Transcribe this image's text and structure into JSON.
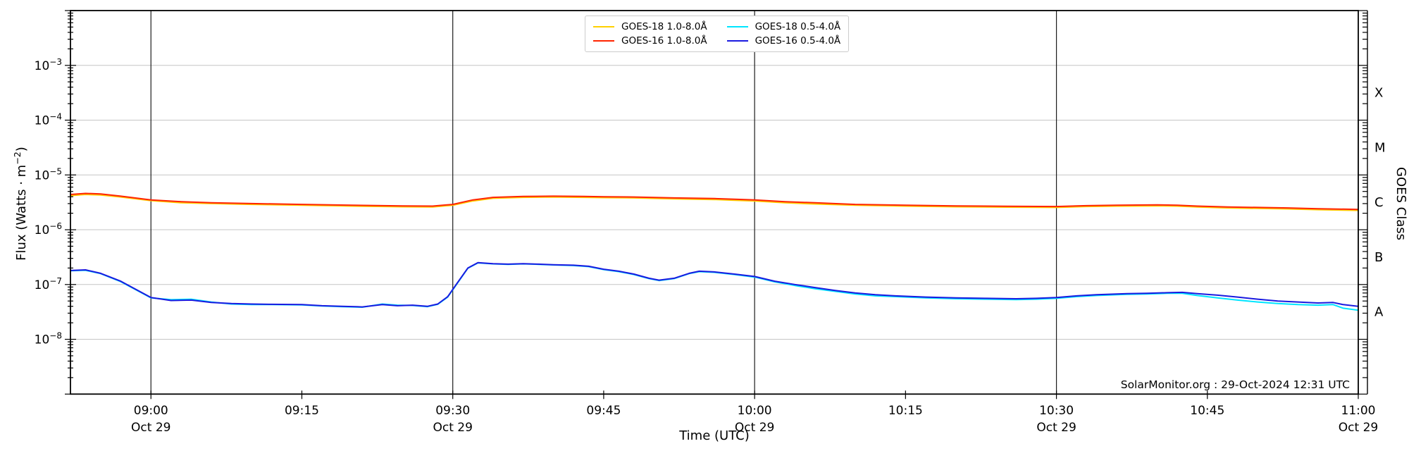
{
  "page": {
    "background": "#ffffff"
  },
  "watermark": {
    "text": "SolarMonitor.org : 29-Oct-2024 12:31 UTC"
  },
  "chart_data": {
    "type": "line",
    "title": "",
    "xlabel": "Time (UTC)",
    "ylabel": {
      "prefix": "Flux (Watts ⋅ m",
      "sup": "−2",
      "suffix": ")"
    },
    "ylabel_right": "GOES Class",
    "x_unit": "minutes since 08:52 UTC on 29-Oct-2024",
    "x_range": [
      0,
      128
    ],
    "ylim": [
      1e-09,
      0.01
    ],
    "y_scale": "log",
    "grid": {
      "h_color": "#c6c6c6",
      "v_color": "#1c1c1c",
      "spine_color": "#000000"
    },
    "y_ticks": [
      {
        "base": "10",
        "exp": "−3",
        "value": 0.001
      },
      {
        "base": "10",
        "exp": "−4",
        "value": 0.0001
      },
      {
        "base": "10",
        "exp": "−5",
        "value": 1e-05
      },
      {
        "base": "10",
        "exp": "−6",
        "value": 1e-06
      },
      {
        "base": "10",
        "exp": "−7",
        "value": 1e-07
      },
      {
        "base": "10",
        "exp": "−8",
        "value": 1e-08
      }
    ],
    "x_ticks": [
      {
        "t": 8,
        "label": "09:00",
        "date": "Oct 29",
        "grid": true
      },
      {
        "t": 23,
        "label": "09:15",
        "date": "",
        "grid": false
      },
      {
        "t": 38,
        "label": "09:30",
        "date": "Oct 29",
        "grid": true
      },
      {
        "t": 53,
        "label": "09:45",
        "date": "",
        "grid": false
      },
      {
        "t": 68,
        "label": "10:00",
        "date": "Oct 29",
        "grid": true
      },
      {
        "t": 83,
        "label": "10:15",
        "date": "",
        "grid": false
      },
      {
        "t": 98,
        "label": "10:30",
        "date": "Oct 29",
        "grid": true
      },
      {
        "t": 113,
        "label": "10:45",
        "date": "",
        "grid": false
      },
      {
        "t": 128,
        "label": "11:00",
        "date": "Oct 29",
        "grid": false
      }
    ],
    "goes_class_ticks": [
      {
        "label": "X",
        "center_exp": -3.5
      },
      {
        "label": "M",
        "center_exp": -4.5
      },
      {
        "label": "C",
        "center_exp": -5.5
      },
      {
        "label": "B",
        "center_exp": -6.5
      },
      {
        "label": "A",
        "center_exp": -7.5
      }
    ],
    "legend": {
      "items": [
        {
          "label": "GOES-18 1.0-8.0Å",
          "color": "#ffd000"
        },
        {
          "label": "GOES-16 1.0-8.0Å",
          "color": "#ff2400"
        },
        {
          "label": "GOES-18 0.5-4.0Å",
          "color": "#00e5ff"
        },
        {
          "label": "GOES-16 0.5-4.0Å",
          "color": "#1a1ae0"
        }
      ]
    },
    "series": [
      {
        "name": "GOES-18 1.0-8.0Å",
        "color": "#ffd000",
        "width": 2,
        "points": [
          [
            0,
            4.2e-06
          ],
          [
            1.5,
            4.4e-06
          ],
          [
            3,
            4.3e-06
          ],
          [
            5,
            3.95e-06
          ],
          [
            8,
            3.4e-06
          ],
          [
            11,
            3.1e-06
          ],
          [
            14,
            3e-06
          ],
          [
            18,
            2.9e-06
          ],
          [
            23,
            2.8e-06
          ],
          [
            28,
            2.7e-06
          ],
          [
            33,
            2.62e-06
          ],
          [
            36,
            2.6e-06
          ],
          [
            38,
            2.8e-06
          ],
          [
            40,
            3.35e-06
          ],
          [
            42,
            3.75e-06
          ],
          [
            45,
            3.9e-06
          ],
          [
            48,
            3.95e-06
          ],
          [
            51,
            3.9e-06
          ],
          [
            53,
            3.85e-06
          ],
          [
            56,
            3.8e-06
          ],
          [
            60,
            3.65e-06
          ],
          [
            64,
            3.55e-06
          ],
          [
            66,
            3.45e-06
          ],
          [
            68,
            3.35e-06
          ],
          [
            71,
            3.1e-06
          ],
          [
            74,
            2.95e-06
          ],
          [
            78,
            2.8e-06
          ],
          [
            83,
            2.7e-06
          ],
          [
            88,
            2.62e-06
          ],
          [
            93,
            2.58e-06
          ],
          [
            98,
            2.55e-06
          ],
          [
            101,
            2.65e-06
          ],
          [
            104,
            2.7e-06
          ],
          [
            108,
            2.72e-06
          ],
          [
            110,
            2.7e-06
          ],
          [
            112,
            2.6e-06
          ],
          [
            115,
            2.5e-06
          ],
          [
            118,
            2.45e-06
          ],
          [
            121,
            2.4e-06
          ],
          [
            124,
            2.32e-06
          ],
          [
            128,
            2.25e-06
          ]
        ]
      },
      {
        "name": "GOES-16 1.0-8.0Å",
        "color": "#ff2400",
        "width": 2,
        "points": [
          [
            0,
            4.4e-06
          ],
          [
            1.5,
            4.6e-06
          ],
          [
            3,
            4.5e-06
          ],
          [
            5,
            4.1e-06
          ],
          [
            8,
            3.5e-06
          ],
          [
            11,
            3.25e-06
          ],
          [
            14,
            3.1e-06
          ],
          [
            18,
            3e-06
          ],
          [
            23,
            2.9e-06
          ],
          [
            28,
            2.8e-06
          ],
          [
            33,
            2.72e-06
          ],
          [
            36,
            2.7e-06
          ],
          [
            38,
            2.9e-06
          ],
          [
            40,
            3.5e-06
          ],
          [
            42,
            3.9e-06
          ],
          [
            45,
            4.05e-06
          ],
          [
            48,
            4.1e-06
          ],
          [
            51,
            4.05e-06
          ],
          [
            53,
            4e-06
          ],
          [
            56,
            3.95e-06
          ],
          [
            60,
            3.8e-06
          ],
          [
            64,
            3.7e-06
          ],
          [
            66,
            3.6e-06
          ],
          [
            68,
            3.5e-06
          ],
          [
            71,
            3.25e-06
          ],
          [
            74,
            3.1e-06
          ],
          [
            78,
            2.9e-06
          ],
          [
            83,
            2.8e-06
          ],
          [
            88,
            2.72e-06
          ],
          [
            93,
            2.68e-06
          ],
          [
            98,
            2.65e-06
          ],
          [
            101,
            2.75e-06
          ],
          [
            104,
            2.8e-06
          ],
          [
            108,
            2.85e-06
          ],
          [
            110,
            2.8e-06
          ],
          [
            112,
            2.7e-06
          ],
          [
            115,
            2.6e-06
          ],
          [
            118,
            2.55e-06
          ],
          [
            121,
            2.5e-06
          ],
          [
            124,
            2.42e-06
          ],
          [
            128,
            2.35e-06
          ]
        ]
      },
      {
        "name": "GOES-18 0.5-4.0Å",
        "color": "#00e5ff",
        "width": 2,
        "points": [
          [
            0,
            1.78e-07
          ],
          [
            1.5,
            1.82e-07
          ],
          [
            3,
            1.58e-07
          ],
          [
            5,
            1.13e-07
          ],
          [
            8,
            5.7e-08
          ],
          [
            10,
            5.3e-08
          ],
          [
            12,
            5.4e-08
          ],
          [
            14,
            4.8e-08
          ],
          [
            16,
            4.4e-08
          ],
          [
            18,
            4.3e-08
          ],
          [
            20,
            4.3e-08
          ],
          [
            23,
            4.25e-08
          ],
          [
            25,
            4.05e-08
          ],
          [
            27,
            3.95e-08
          ],
          [
            29,
            3.85e-08
          ],
          [
            31,
            4.4e-08
          ],
          [
            32.5,
            4.2e-08
          ],
          [
            34,
            4.15e-08
          ],
          [
            35.5,
            3.95e-08
          ],
          [
            36.5,
            4.35e-08
          ],
          [
            37.5,
            5.9e-08
          ],
          [
            38.5,
            1.08e-07
          ],
          [
            39.5,
            1.98e-07
          ],
          [
            40.5,
            2.48e-07
          ],
          [
            42,
            2.38e-07
          ],
          [
            43.5,
            2.33e-07
          ],
          [
            45,
            2.38e-07
          ],
          [
            46.5,
            2.33e-07
          ],
          [
            48,
            2.28e-07
          ],
          [
            50,
            2.22e-07
          ],
          [
            51.5,
            2.12e-07
          ],
          [
            53,
            1.87e-07
          ],
          [
            54.5,
            1.72e-07
          ],
          [
            56,
            1.52e-07
          ],
          [
            57.5,
            1.28e-07
          ],
          [
            58.5,
            1.18e-07
          ],
          [
            60,
            1.28e-07
          ],
          [
            61.5,
            1.58e-07
          ],
          [
            62.5,
            1.72e-07
          ],
          [
            64,
            1.67e-07
          ],
          [
            66,
            1.52e-07
          ],
          [
            68,
            1.37e-07
          ],
          [
            70,
            1.12e-07
          ],
          [
            72,
            9.6e-08
          ],
          [
            74,
            8.4e-08
          ],
          [
            76,
            7.5e-08
          ],
          [
            78,
            6.7e-08
          ],
          [
            80,
            6.2e-08
          ],
          [
            82,
            6e-08
          ],
          [
            85,
            5.7e-08
          ],
          [
            88,
            5.5e-08
          ],
          [
            91,
            5.4e-08
          ],
          [
            94,
            5.3e-08
          ],
          [
            96,
            5.4e-08
          ],
          [
            98,
            5.6e-08
          ],
          [
            100,
            6e-08
          ],
          [
            102,
            6.3e-08
          ],
          [
            105,
            6.6e-08
          ],
          [
            107,
            6.7e-08
          ],
          [
            109,
            6.9e-08
          ],
          [
            110.5,
            6.9e-08
          ],
          [
            112,
            6.3e-08
          ],
          [
            114,
            5.7e-08
          ],
          [
            116,
            5.2e-08
          ],
          [
            118,
            4.8e-08
          ],
          [
            120,
            4.5e-08
          ],
          [
            122,
            4.3e-08
          ],
          [
            124,
            4.2e-08
          ],
          [
            125.5,
            4.3e-08
          ],
          [
            126.5,
            3.7e-08
          ],
          [
            128,
            3.4e-08
          ]
        ]
      },
      {
        "name": "GOES-16 0.5-4.0Å",
        "color": "#1a1ae0",
        "width": 2,
        "points": [
          [
            0,
            1.8e-07
          ],
          [
            1.5,
            1.85e-07
          ],
          [
            3,
            1.6e-07
          ],
          [
            5,
            1.15e-07
          ],
          [
            8,
            5.8e-08
          ],
          [
            10,
            5.1e-08
          ],
          [
            12,
            5.2e-08
          ],
          [
            14,
            4.7e-08
          ],
          [
            16,
            4.5e-08
          ],
          [
            18,
            4.4e-08
          ],
          [
            20,
            4.35e-08
          ],
          [
            23,
            4.3e-08
          ],
          [
            25,
            4.1e-08
          ],
          [
            27,
            4e-08
          ],
          [
            29,
            3.9e-08
          ],
          [
            31,
            4.3e-08
          ],
          [
            32.5,
            4.1e-08
          ],
          [
            34,
            4.2e-08
          ],
          [
            35.5,
            4e-08
          ],
          [
            36.5,
            4.4e-08
          ],
          [
            37.5,
            6e-08
          ],
          [
            38.5,
            1.1e-07
          ],
          [
            39.5,
            2e-07
          ],
          [
            40.5,
            2.5e-07
          ],
          [
            42,
            2.4e-07
          ],
          [
            43.5,
            2.35e-07
          ],
          [
            45,
            2.4e-07
          ],
          [
            46.5,
            2.35e-07
          ],
          [
            48,
            2.3e-07
          ],
          [
            50,
            2.25e-07
          ],
          [
            51.5,
            2.15e-07
          ],
          [
            53,
            1.9e-07
          ],
          [
            54.5,
            1.75e-07
          ],
          [
            56,
            1.55e-07
          ],
          [
            57.5,
            1.3e-07
          ],
          [
            58.5,
            1.2e-07
          ],
          [
            60,
            1.3e-07
          ],
          [
            61.5,
            1.6e-07
          ],
          [
            62.5,
            1.75e-07
          ],
          [
            64,
            1.7e-07
          ],
          [
            66,
            1.55e-07
          ],
          [
            68,
            1.4e-07
          ],
          [
            70,
            1.15e-07
          ],
          [
            72,
            1e-07
          ],
          [
            74,
            8.8e-08
          ],
          [
            76,
            7.8e-08
          ],
          [
            78,
            7e-08
          ],
          [
            80,
            6.5e-08
          ],
          [
            82,
            6.2e-08
          ],
          [
            85,
            5.9e-08
          ],
          [
            88,
            5.7e-08
          ],
          [
            91,
            5.6e-08
          ],
          [
            94,
            5.5e-08
          ],
          [
            96,
            5.6e-08
          ],
          [
            98,
            5.8e-08
          ],
          [
            100,
            6.2e-08
          ],
          [
            102,
            6.5e-08
          ],
          [
            105,
            6.8e-08
          ],
          [
            107,
            6.9e-08
          ],
          [
            109,
            7.1e-08
          ],
          [
            110.5,
            7.2e-08
          ],
          [
            112,
            6.8e-08
          ],
          [
            114,
            6.4e-08
          ],
          [
            116,
            5.9e-08
          ],
          [
            118,
            5.4e-08
          ],
          [
            120,
            5e-08
          ],
          [
            122,
            4.8e-08
          ],
          [
            124,
            4.6e-08
          ],
          [
            125.5,
            4.7e-08
          ],
          [
            126.5,
            4.3e-08
          ],
          [
            128,
            4e-08
          ]
        ]
      }
    ]
  }
}
